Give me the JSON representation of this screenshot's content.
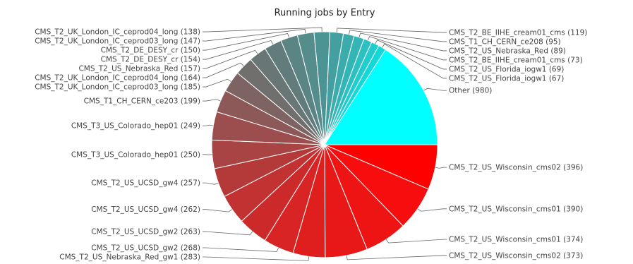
{
  "chart_data": {
    "type": "pie",
    "title": "Running jobs by Entry",
    "slices": [
      {
        "label": "CMS_T2_US_Wisconsin_cms02",
        "value": 396,
        "color": "#ff0000"
      },
      {
        "label": "CMS_T2_US_Wisconsin_cms01",
        "value": 390,
        "color": "#f70d0d"
      },
      {
        "label": "CMS_T2_US_Wisconsin_cms01",
        "value": 374,
        "color": "#ef1414"
      },
      {
        "label": "CMS_T2_US_Wisconsin_cms02",
        "value": 373,
        "color": "#e81818"
      },
      {
        "label": "CMS_T2_US_Nebraska_Red_gw1",
        "value": 283,
        "color": "#df1e1e"
      },
      {
        "label": "CMS_T2_US_UCSD_gw2",
        "value": 268,
        "color": "#d82424"
      },
      {
        "label": "CMS_T2_US_UCSD_gw2",
        "value": 263,
        "color": "#cc2a2a"
      },
      {
        "label": "CMS_T2_US_UCSD_gw4",
        "value": 262,
        "color": "#c23232"
      },
      {
        "label": "CMS_T2_US_UCSD_gw4",
        "value": 257,
        "color": "#b43a3a"
      },
      {
        "label": "CMS_T3_US_Colorado_hep01",
        "value": 250,
        "color": "#a84444"
      },
      {
        "label": "CMS_T3_US_Colorado_hep01",
        "value": 249,
        "color": "#9c4e4e"
      },
      {
        "label": "CMS_T1_CH_CERN_ce203",
        "value": 199,
        "color": "#8c5858"
      },
      {
        "label": "CMS_T2_UK_London_IC_ceprod03_long",
        "value": 185,
        "color": "#7e6363"
      },
      {
        "label": "CMS_T2_UK_London_IC_ceprod04_long",
        "value": 164,
        "color": "#716e6e"
      },
      {
        "label": "CMS_T2_US_Nebraska_Red",
        "value": 157,
        "color": "#687676"
      },
      {
        "label": "CMS_T2_DE_DESY_cr",
        "value": 154,
        "color": "#627c7c"
      },
      {
        "label": "CMS_T2_DE_DESY_cr",
        "value": 150,
        "color": "#5b8585"
      },
      {
        "label": "CMS_T2_UK_London_IC_ceprod03_long",
        "value": 147,
        "color": "#558c8c"
      },
      {
        "label": "CMS_T2_UK_London_IC_ceprod04_long",
        "value": 138,
        "color": "#4c9494"
      },
      {
        "label": "CMS_T2_BE_IIHE_cream01_cms",
        "value": 119,
        "color": "#44a0a0"
      },
      {
        "label": "CMS_T1_CH_CERN_ce208",
        "value": 95,
        "color": "#3cabab"
      },
      {
        "label": "CMS_T2_US_Nebraska_Red",
        "value": 89,
        "color": "#34b5b5"
      },
      {
        "label": "CMS_T2_BE_IIHE_cream01_cms",
        "value": 73,
        "color": "#2cc0c0"
      },
      {
        "label": "CMS_T2_US_Florida_iogw1",
        "value": 69,
        "color": "#20cccc"
      },
      {
        "label": "CMS_T2_US_Florida_iogw1",
        "value": 67,
        "color": "#14d8d8"
      },
      {
        "label": "Other",
        "value": 980,
        "color": "#00ffff"
      }
    ]
  }
}
